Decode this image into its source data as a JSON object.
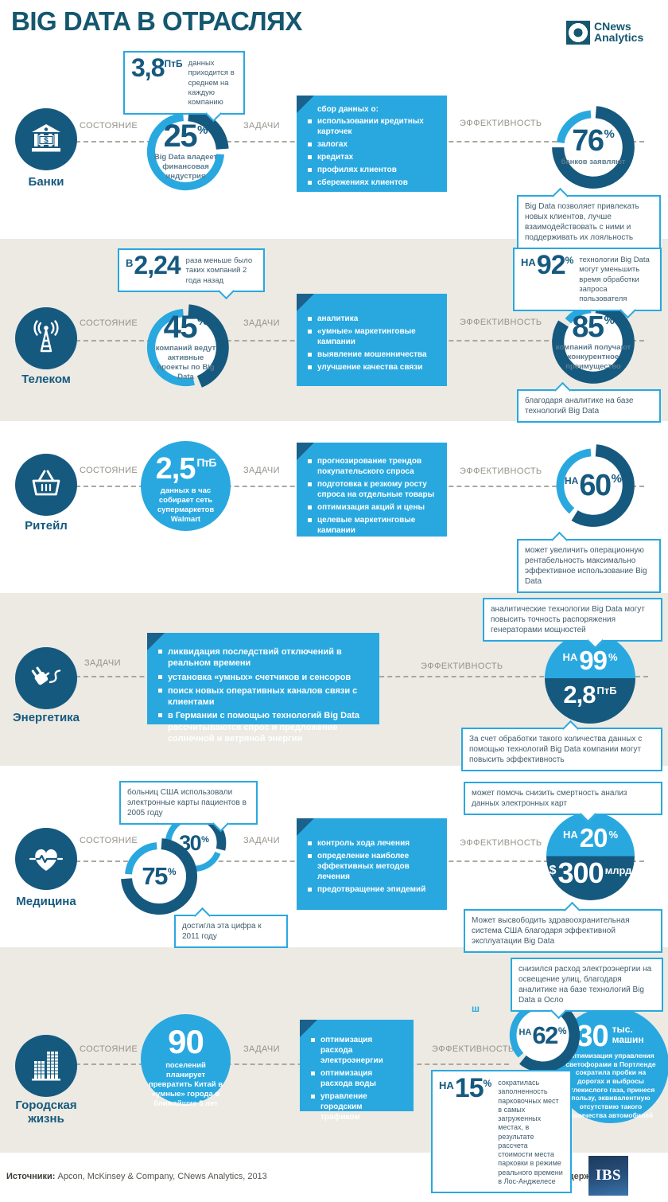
{
  "header": {
    "title": "BIG DATA В ОТРАСЛЯХ",
    "logo_line1": "CNews",
    "logo_line2": "Analytics"
  },
  "labels": {
    "state": "СОСТОЯНИЕ",
    "tasks": "ЗАДАЧИ",
    "effect": "ЭФФЕКТИВНОСТЬ"
  },
  "banks": {
    "label": "Банки",
    "volume_callout": {
      "num": "3,8",
      "unit": "ПтБ",
      "text": "данных приходится в среднем на каждую компанию"
    },
    "state": {
      "percent": 25,
      "value": "25",
      "pct": "%",
      "caption": "Big Data владеет финансовая индустрия"
    },
    "tasks": {
      "heading": "сбор данных о:",
      "items": [
        "использовании кредитных карточек",
        "залогах",
        "кредитах",
        "профилях клиентов",
        "сбережениях клиентов"
      ]
    },
    "effect": {
      "percent": 76,
      "value": "76",
      "pct": "%",
      "caption": "банков заявляют"
    },
    "effect_callout": "Big Data позволяет привлекать новых клиентов, лучше взаимодействовать с ними и поддерживать их лояльность"
  },
  "telecom": {
    "label": "Телеком",
    "growth_callout": {
      "prefix": "В",
      "num": "2,24",
      "text": "раза меньше было таких компаний 2 года назад"
    },
    "state": {
      "percent": 45,
      "value": "45",
      "pct": "%",
      "caption": "компаний ведут активные проекты по Big Data"
    },
    "tasks": {
      "items": [
        "аналитика",
        "«умные» маркетинговые кампании",
        "выявление мошенничества",
        "улучшение качества связи"
      ]
    },
    "speed_callout": {
      "prefix": "НА",
      "num": "92",
      "pct": "%",
      "text": "технологии Big Data могут уменьшить время обработки запроса пользователя"
    },
    "effect": {
      "percent": 85,
      "value": "85",
      "pct": "%",
      "caption": "компаний получают конкурентное преимущество"
    },
    "effect_callout": "благодаря аналитике на базе технологий Big Data"
  },
  "retail": {
    "label": "Ритейл",
    "state_circle": {
      "num": "2,5",
      "unit": "ПтБ",
      "caption": "данных в час собирает сеть супермаркетов Walmart"
    },
    "tasks": {
      "items": [
        "прогнозирование трендов покупательского спроса",
        "подготовка к резкому росту спроса на отдельные товары",
        "оптимизация акций и цены",
        "целевые маркетинговые кампании"
      ]
    },
    "effect": {
      "percent": 60,
      "prefix": "НА",
      "value": "60",
      "pct": "%"
    },
    "effect_callout": "может увеличить операционную рентабельность максимально эффективное использование Big Data"
  },
  "energy": {
    "label": "Энергетика",
    "tasks": {
      "items": [
        "ликвидация последствий отключений в реальном времени",
        "установка «умных» счетчиков и сенсоров",
        "поиск новых оперативных каналов связи с клиентами",
        "в Германии с помощью технологий Big Data рассчитываются спрос и предложение солнечной и ветряной энергии"
      ]
    },
    "effect_callout_top": "аналитические технологии Big Data могут повысить точность распоряжения генераторами мощностей",
    "split": {
      "percent": 99,
      "prefix": "НА",
      "value": "99",
      "pct": "%",
      "volume_num": "2,8",
      "volume_unit": "ПтБ"
    },
    "effect_callout_bottom": "За счет обработки такого количества данных с помощью технологий Big Data компании могут повысить эффективность"
  },
  "medicine": {
    "label": "Медицина",
    "ehr2005": {
      "percent": 30,
      "value": "30",
      "pct": "%"
    },
    "ehr2011": {
      "percent": 75,
      "value": "75",
      "pct": "%"
    },
    "callout_2005": "больниц США использовали электронные карты пациентов в 2005 году",
    "callout_2011": "достигла эта цифра к 2011 году",
    "tasks": {
      "items": [
        "контроль хода лечения",
        "определение наиболее эффективных методов лечения",
        "предотвращение эпидемий"
      ]
    },
    "effect_callout_top": "может помочь снизить смертность анализ данных электронных карт",
    "split": {
      "percent": 20,
      "prefix": "НА",
      "value": "20",
      "pct": "%",
      "savings_cur": "$",
      "savings_num": "300",
      "savings_unit": "млрд"
    },
    "effect_callout_bottom": "Может высвободить здравоохранительная система США благодаря эффективной эксплуатации Big Data"
  },
  "city": {
    "label": "Городская жизнь",
    "state_circle": {
      "num": "90",
      "caption": "поселений планирует превратить Китай в «умные» города в ближайшие 5 лет"
    },
    "tasks": {
      "items": [
        "оптимизация расхода электроэнергии",
        "оптимизация расхода воды",
        "управление городским трафиком"
      ]
    },
    "lighting_callout": "снизился расход электроэнергии на освещение улиц, благодаря аналитике на базе технологий Big Data в Осло",
    "effect": {
      "percent": 62,
      "prefix": "НА",
      "value": "62",
      "pct": "%"
    },
    "stray_char": "ш",
    "traffic_circle": {
      "num": "30",
      "unit": "тыс. машин",
      "text": "Оптимизация управления светофорами в Портленде сократила пробки на дорогах и выбросы углекислого газа, принеся пользу, эквивалентную отсутствию такого количества автомобилей"
    },
    "parking": {
      "prefix": "НА",
      "num": "15",
      "pct": "%",
      "text": "сократилась заполненность парковочных мест в самых загруженных местах, в результате рассчета стоимости места парковки в режиме реального времени в Лос-Анджелесе"
    }
  },
  "footer": {
    "sources_label": "Источники:",
    "sources_text": " Apcon, McKinsey & Company, CNews Analytics, 2013",
    "support_text": "Подготовлено при поддержке",
    "ibs": "IBS"
  },
  "chart_data": {
    "type": "pie",
    "title": "Big Data в отраслях",
    "charts": [
      {
        "industry": "Банки",
        "metric": "Big Data владеет финансовая индустрия",
        "percent": 25
      },
      {
        "industry": "Банки",
        "metric": "банков заявляют об эффективности",
        "percent": 76
      },
      {
        "industry": "Банки",
        "metric": "данных в среднем на каждую компанию",
        "value": "3,8 ПтБ"
      },
      {
        "industry": "Телеком",
        "metric": "компаний ведут активные проекты по Big Data",
        "percent": 45,
        "note": "в 2,24 раза меньше было таких компаний 2 года назад"
      },
      {
        "industry": "Телеком",
        "metric": "уменьшение времени обработки запроса пользователя",
        "percent": 92
      },
      {
        "industry": "Телеком",
        "metric": "компаний получают конкурентное преимущество",
        "percent": 85
      },
      {
        "industry": "Ритейл",
        "metric": "данных в час собирает сеть супермаркетов Walmart",
        "value": "2,5 ПтБ"
      },
      {
        "industry": "Ритейл",
        "metric": "рост операционной рентабельности",
        "percent": 60
      },
      {
        "industry": "Энергетика",
        "metric": "повышение точности распоряжения генераторами мощностей",
        "percent": 99
      },
      {
        "industry": "Энергетика",
        "metric": "объем обрабатываемых данных",
        "value": "2,8 ПтБ"
      },
      {
        "industry": "Медицина",
        "metric": "больниц США использовали электронные карты пациентов в 2005 году",
        "percent": 30
      },
      {
        "industry": "Медицина",
        "metric": "достигла эта цифра к 2011 году",
        "percent": 75
      },
      {
        "industry": "Медицина",
        "metric": "снижение смертности",
        "percent": 20
      },
      {
        "industry": "Медицина",
        "metric": "экономия здравоохранительной системы США",
        "value": "$300 млрд"
      },
      {
        "industry": "Городская жизнь",
        "metric": "поселений планирует превратить Китай в «умные» города",
        "value": 90
      },
      {
        "industry": "Городская жизнь",
        "metric": "снижение расхода электроэнергии на освещение улиц в Осло",
        "percent": 62
      },
      {
        "industry": "Городская жизнь",
        "metric": "эквивалент сокращения пробок в Портленде",
        "value": "30 тыс. машин"
      },
      {
        "industry": "Городская жизнь",
        "metric": "снижение заполненности парковочных мест в Лос-Анджелесе",
        "percent": 15
      }
    ]
  }
}
